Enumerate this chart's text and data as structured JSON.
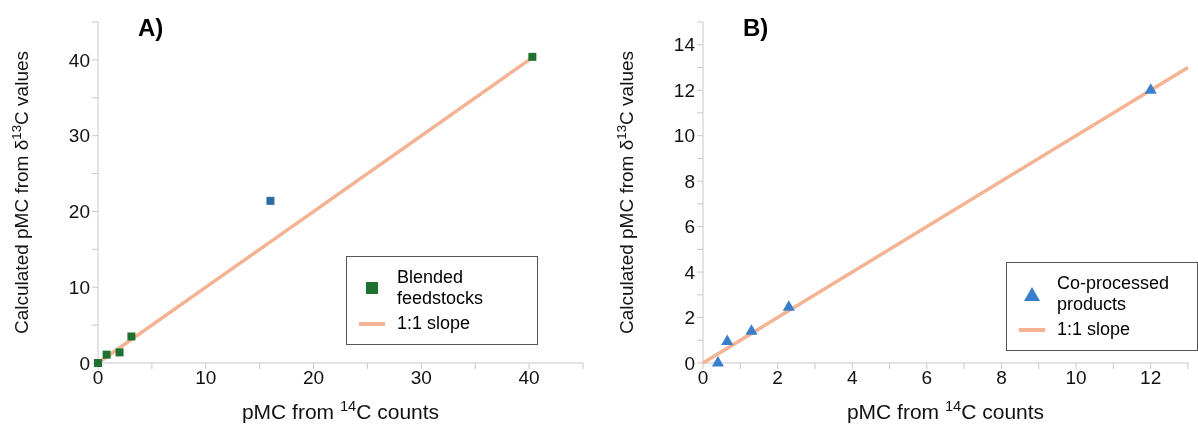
{
  "chart_data": [
    {
      "type": "scatter",
      "title": "A)",
      "xlabel": "pMC from $^{14}$C counts",
      "ylabel": "Calculated pMC from δ$^{13}$C values",
      "xlim": [
        0,
        45
      ],
      "ylim": [
        0,
        45
      ],
      "xticks": [
        0,
        {
          "value": 5,
          "label": null
        },
        10,
        {
          "value": 15,
          "label": null
        },
        20,
        {
          "value": 25,
          "label": null
        },
        30,
        {
          "value": 35,
          "label": null
        },
        40,
        {
          "value": 45,
          "label": null
        }
      ],
      "yticks": [
        0,
        {
          "value": 5,
          "label": null
        },
        10,
        {
          "value": 15,
          "label": null
        },
        20,
        {
          "value": 25,
          "label": null
        },
        30,
        {
          "value": 35,
          "label": null
        },
        40,
        {
          "value": 45,
          "label": null
        }
      ],
      "grid": false,
      "legend": "bottom right",
      "series": [
        {
          "name": "Blended feedstocks",
          "type": "scatter",
          "marker": "square",
          "color": "#1e7130",
          "x": [
            0,
            0.8,
            2,
            3.1,
            40.3
          ],
          "values": [
            0,
            1.1,
            1.4,
            3.5,
            40.4
          ]
        },
        {
          "type": "scatter",
          "marker": "square",
          "color": "#2e6da4",
          "x": [
            16
          ],
          "values": [
            21.4
          ]
        },
        {
          "name": "1:1 slope",
          "type": "line",
          "marker": "none",
          "line_style": "solid",
          "color": "#f4b393",
          "x": [
            0,
            40.3
          ],
          "values": [
            0,
            40.3
          ]
        }
      ]
    },
    {
      "type": "scatter",
      "title": "B)",
      "xlabel": "pMC from $^{14}$C counts",
      "ylabel": "Calculated pMC from δ$^{13}$C values",
      "xlim": [
        0,
        13
      ],
      "ylim": [
        0,
        15
      ],
      "xticks": [
        0,
        {
          "value": 1,
          "label": null
        },
        2,
        {
          "value": 3,
          "label": null
        },
        4,
        {
          "value": 5,
          "label": null
        },
        6,
        {
          "value": 7,
          "label": null
        },
        8,
        {
          "value": 9,
          "label": null
        },
        10,
        {
          "value": 11,
          "label": null
        },
        12,
        {
          "value": 13,
          "label": null
        }
      ],
      "yticks": [
        0,
        {
          "value": 1,
          "label": null
        },
        2,
        {
          "value": 3,
          "label": null
        },
        4,
        {
          "value": 5,
          "label": null
        },
        6,
        {
          "value": 7,
          "label": null
        },
        8,
        {
          "value": 9,
          "label": null
        },
        10,
        {
          "value": 11,
          "label": null
        },
        12,
        {
          "value": 13,
          "label": null
        },
        14,
        {
          "value": 15,
          "label": null
        }
      ],
      "grid": false,
      "legend": "right",
      "series": [
        {
          "name": "Co-processed products",
          "type": "scatter",
          "marker": "triangle",
          "color": "#3a7fcc",
          "x": [
            0.4,
            0.65,
            1.3,
            2.3,
            12
          ],
          "values": [
            0,
            0.95,
            1.4,
            2.45,
            12
          ]
        },
        {
          "name": "1:1 slope",
          "type": "line",
          "marker": "none",
          "line_style": "solid",
          "color": "#f4b393",
          "x": [
            0,
            13
          ],
          "values": [
            0,
            13
          ]
        }
      ]
    }
  ]
}
